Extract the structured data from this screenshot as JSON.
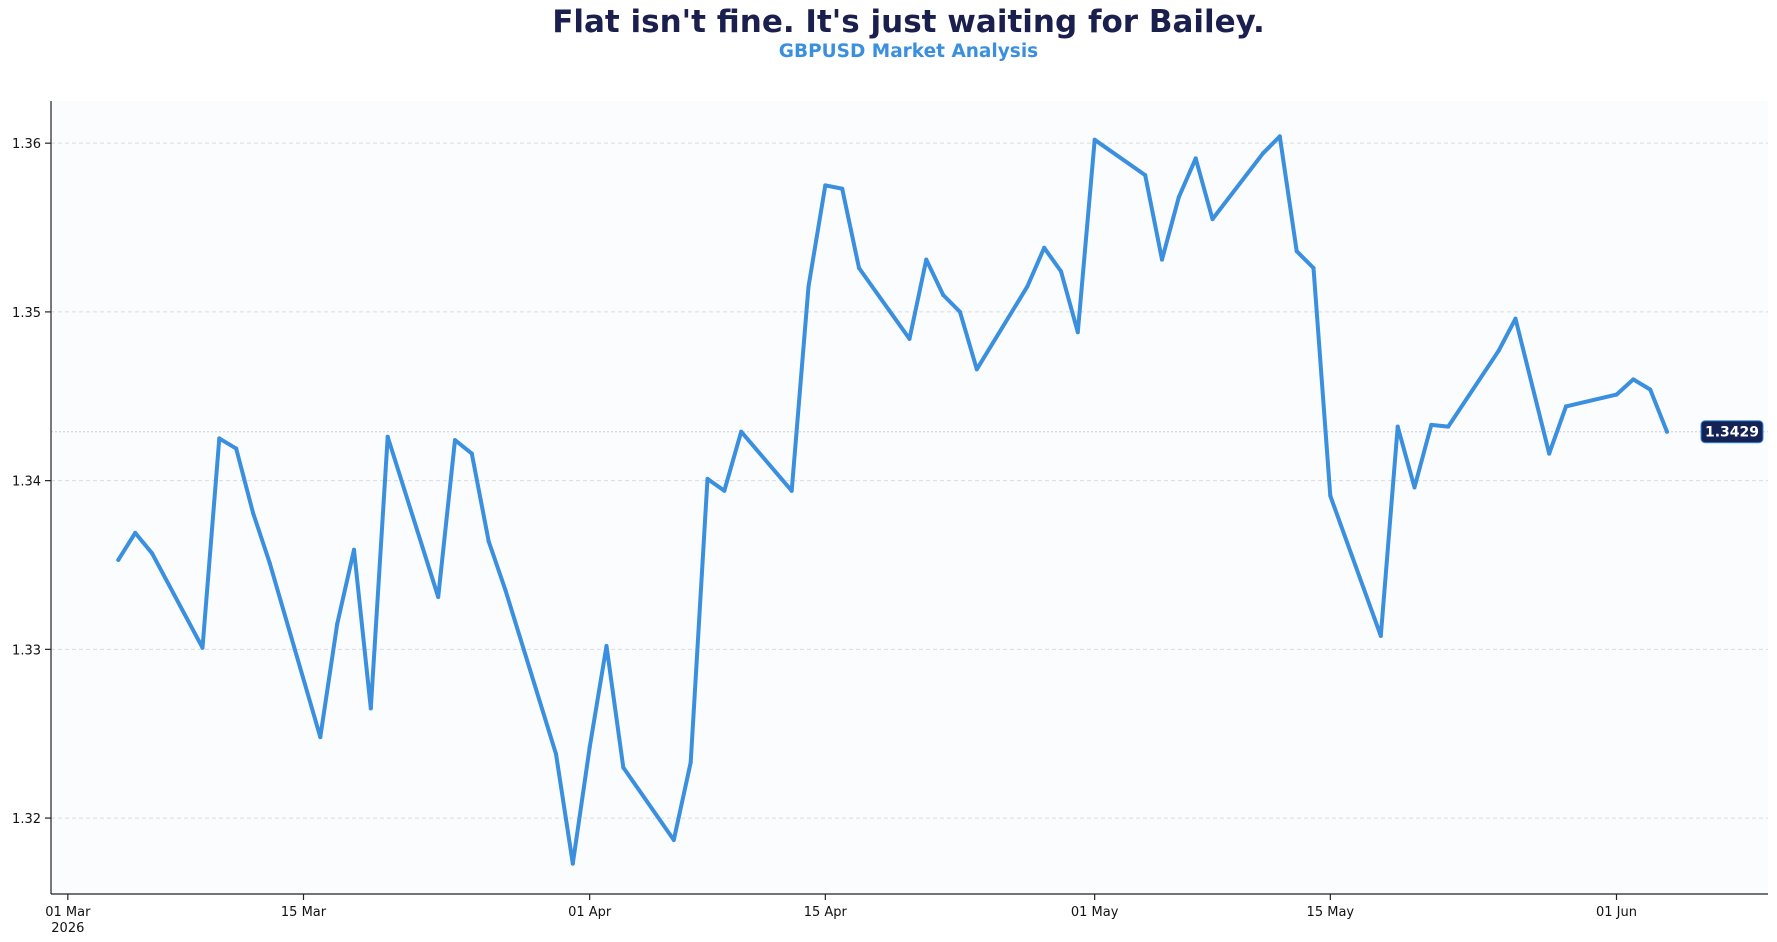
{
  "chart_data": {
    "type": "line",
    "title": "Flat isn't fine. It's just waiting for Bailey.",
    "subtitle": "GBPUSD Market Analysis",
    "xlabel": "",
    "ylabel": "",
    "x_range": [
      "2026-02-28",
      "2026-06-10"
    ],
    "ylim": [
      1.3155,
      1.3625
    ],
    "grid": {
      "horizontal": true,
      "vertical": false,
      "style": "dashed"
    },
    "legend": "none",
    "colors": {
      "line": "#3a8fdf",
      "title": "#1b1f4e",
      "subtitle": "#3a8fdf",
      "badge": "#152255",
      "grid": "#d7dbe2",
      "plot_bg": "#fbfcfe"
    },
    "last_value": {
      "value": 1.3429,
      "label": "1.3429"
    },
    "y_ticks": [
      {
        "value": 1.32,
        "label": "1.32"
      },
      {
        "value": 1.33,
        "label": "1.33"
      },
      {
        "value": 1.34,
        "label": "1.34"
      },
      {
        "value": 1.35,
        "label": "1.35"
      },
      {
        "value": 1.36,
        "label": "1.36"
      }
    ],
    "x_ticks": [
      {
        "date": "2026-03-01",
        "label": "01 Mar",
        "sublabel": "2026"
      },
      {
        "date": "2026-03-15",
        "label": "15 Mar"
      },
      {
        "date": "2026-04-01",
        "label": "01 Apr"
      },
      {
        "date": "2026-04-15",
        "label": "15 Apr"
      },
      {
        "date": "2026-05-01",
        "label": "01 May"
      },
      {
        "date": "2026-05-15",
        "label": "15 May"
      },
      {
        "date": "2026-06-01",
        "label": "01 Jun"
      }
    ],
    "series": [
      {
        "points": [
          [
            "2026-03-04",
            1.3353
          ],
          [
            "2026-03-05",
            1.3369
          ],
          [
            "2026-03-06",
            1.3357
          ],
          [
            "2026-03-09",
            1.3301
          ],
          [
            "2026-03-10",
            1.3425
          ],
          [
            "2026-03-11",
            1.3419
          ],
          [
            "2026-03-12",
            1.3381
          ],
          [
            "2026-03-13",
            1.3351
          ],
          [
            "2026-03-16",
            1.3248
          ],
          [
            "2026-03-17",
            1.3315
          ],
          [
            "2026-03-18",
            1.3359
          ],
          [
            "2026-03-19",
            1.3265
          ],
          [
            "2026-03-20",
            1.3426
          ],
          [
            "2026-03-23",
            1.3331
          ],
          [
            "2026-03-24",
            1.3424
          ],
          [
            "2026-03-25",
            1.3416
          ],
          [
            "2026-03-26",
            1.3364
          ],
          [
            "2026-03-27",
            1.3335
          ],
          [
            "2026-03-30",
            1.3238
          ],
          [
            "2026-03-31",
            1.3173
          ],
          [
            "2026-04-01",
            1.3242
          ],
          [
            "2026-04-02",
            1.3302
          ],
          [
            "2026-04-03",
            1.323
          ],
          [
            "2026-04-06",
            1.3187
          ],
          [
            "2026-04-07",
            1.3233
          ],
          [
            "2026-04-08",
            1.3401
          ],
          [
            "2026-04-09",
            1.3394
          ],
          [
            "2026-04-10",
            1.3429
          ],
          [
            "2026-04-13",
            1.3394
          ],
          [
            "2026-04-14",
            1.3515
          ],
          [
            "2026-04-15",
            1.3575
          ],
          [
            "2026-04-16",
            1.3573
          ],
          [
            "2026-04-17",
            1.3526
          ],
          [
            "2026-04-20",
            1.3484
          ],
          [
            "2026-04-21",
            1.3531
          ],
          [
            "2026-04-22",
            1.351
          ],
          [
            "2026-04-23",
            1.35
          ],
          [
            "2026-04-24",
            1.3466
          ],
          [
            "2026-04-27",
            1.3515
          ],
          [
            "2026-04-28",
            1.3538
          ],
          [
            "2026-04-29",
            1.3524
          ],
          [
            "2026-04-30",
            1.3488
          ],
          [
            "2026-05-01",
            1.3602
          ],
          [
            "2026-05-04",
            1.3581
          ],
          [
            "2026-05-05",
            1.3531
          ],
          [
            "2026-05-06",
            1.3568
          ],
          [
            "2026-05-07",
            1.3591
          ],
          [
            "2026-05-08",
            1.3555
          ],
          [
            "2026-05-11",
            1.3594
          ],
          [
            "2026-05-12",
            1.3604
          ],
          [
            "2026-05-13",
            1.3536
          ],
          [
            "2026-05-14",
            1.3526
          ],
          [
            "2026-05-15",
            1.3391
          ],
          [
            "2026-05-18",
            1.3308
          ],
          [
            "2026-05-19",
            1.3432
          ],
          [
            "2026-05-20",
            1.3396
          ],
          [
            "2026-05-21",
            1.3433
          ],
          [
            "2026-05-22",
            1.3432
          ],
          [
            "2026-05-25",
            1.3477
          ],
          [
            "2026-05-26",
            1.3496
          ],
          [
            "2026-05-28",
            1.3416
          ],
          [
            "2026-05-29",
            1.3444
          ],
          [
            "2026-06-01",
            1.3451
          ],
          [
            "2026-06-02",
            1.346
          ],
          [
            "2026-06-03",
            1.3454
          ],
          [
            "2026-06-04",
            1.3429
          ]
        ]
      }
    ]
  }
}
